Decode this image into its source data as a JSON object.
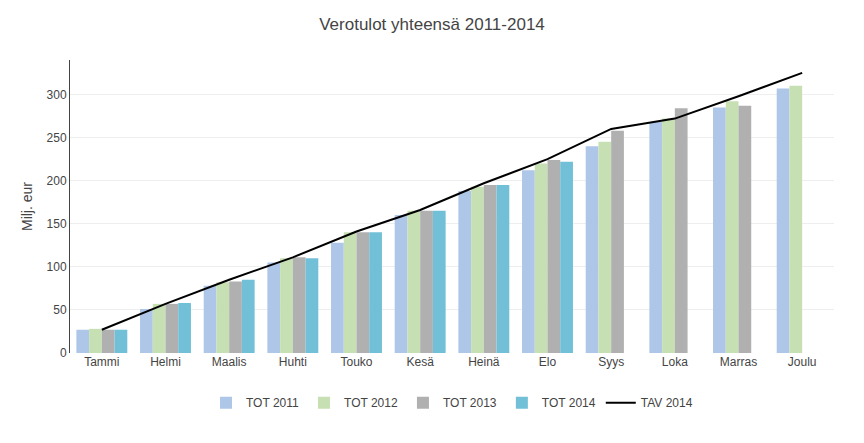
{
  "chart_data": {
    "type": "bar",
    "title": "Verotulot yhteensä 2011-2014",
    "ylabel": "Milj. eur",
    "categories": [
      "Tammi",
      "Helmi",
      "Maalis",
      "Huhti",
      "Touko",
      "Kesä",
      "Heinä",
      "Elo",
      "Syys",
      "Loka",
      "Marras",
      "Joulu"
    ],
    "series": [
      {
        "name": "TOT 2011",
        "color": "#aec6e8",
        "values": [
          27,
          51,
          78,
          105,
          128,
          160,
          188,
          212,
          240,
          268,
          285,
          307
        ]
      },
      {
        "name": "TOT 2012",
        "color": "#c6e0b4",
        "values": [
          28,
          57,
          82,
          110,
          140,
          165,
          193,
          220,
          245,
          272,
          292,
          310
        ]
      },
      {
        "name": "TOT 2013",
        "color": "#b0b0b0",
        "values": [
          27,
          57,
          83,
          111,
          140,
          165,
          195,
          224,
          258,
          284,
          287,
          null
        ]
      },
      {
        "name": "TOT 2014",
        "color": "#72c0d8",
        "values": [
          27,
          58,
          85,
          110,
          140,
          165,
          195,
          222,
          null,
          null,
          null,
          null
        ]
      },
      {
        "name": "TAV 2014",
        "type": "line",
        "color": "#000000",
        "values": [
          27,
          57,
          85,
          111,
          141,
          166,
          197,
          225,
          260,
          272,
          298,
          325
        ]
      }
    ],
    "ylim": [
      0,
      340
    ],
    "yticks": [
      0,
      50,
      100,
      150,
      200,
      250,
      300
    ],
    "grid": true,
    "legend": "bottom"
  }
}
